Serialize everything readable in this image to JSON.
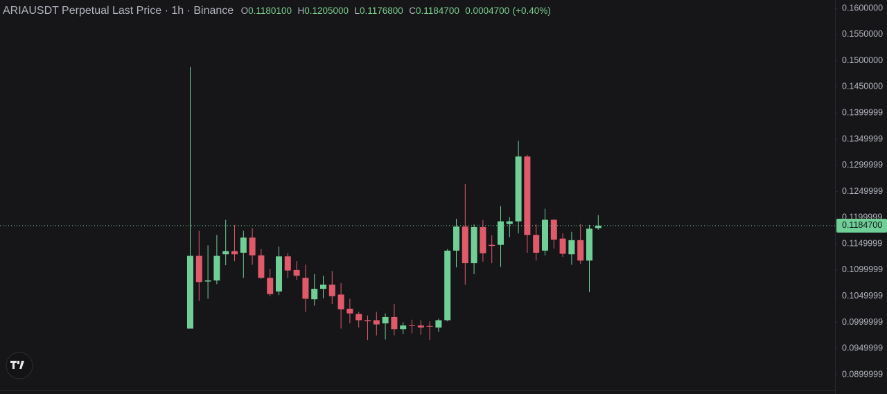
{
  "chart_data": {
    "type": "candlestick",
    "header": {
      "symbol": "ARIAUSDT Perpetual Last Price · 1h · Binance",
      "o_label": "O",
      "o": "0.1180100",
      "h_label": "H",
      "h": "0.1205000",
      "l_label": "L",
      "l": "0.1176800",
      "c_label": "C",
      "c": "0.1184700",
      "change": "0.0004700",
      "change_pct": "(+0.40%)"
    },
    "open": [
      0.0988,
      0.1127,
      0.1078,
      0.108,
      0.113,
      0.1136,
      0.1133,
      0.1162,
      0.1128,
      0.1085,
      0.1059,
      0.1126,
      0.11,
      0.1085,
      0.1044,
      0.1064,
      0.1072,
      0.1053,
      0.1026,
      0.1016,
      0.1004,
      0.1004,
      0.0998,
      0.101,
      0.0987,
      0.0994,
      0.0994,
      0.0993,
      0.099,
      0.1004,
      0.1137,
      0.1183,
      0.1113,
      0.1182,
      0.1148,
      0.1148,
      0.1188,
      0.1193,
      0.1317,
      0.1167,
      0.1137,
      0.1196,
      0.116,
      0.113,
      0.1157,
      0.1118,
      0.11801
    ],
    "high": [
      0.1488,
      0.1175,
      0.1147,
      0.1167,
      0.1196,
      0.1186,
      0.1175,
      0.118,
      0.114,
      0.1102,
      0.1145,
      0.1132,
      0.1117,
      0.111,
      0.1092,
      0.1089,
      0.1098,
      0.1075,
      0.1045,
      0.102,
      0.1013,
      0.102,
      0.1017,
      0.1035,
      0.1,
      0.1005,
      0.1004,
      0.1002,
      0.1007,
      0.114,
      0.1198,
      0.1264,
      0.1187,
      0.1195,
      0.1166,
      0.1222,
      0.1201,
      0.1347,
      0.132,
      0.1187,
      0.1217,
      0.1197,
      0.117,
      0.1173,
      0.1188,
      0.1186,
      0.1205
    ],
    "low": [
      0.0988,
      0.1041,
      0.1045,
      0.1073,
      0.1109,
      0.1117,
      0.1085,
      0.111,
      0.1083,
      0.105,
      0.1052,
      0.1085,
      0.1081,
      0.102,
      0.1032,
      0.1046,
      0.1035,
      0.0988,
      0.0998,
      0.099,
      0.0966,
      0.0975,
      0.0967,
      0.0975,
      0.0978,
      0.0979,
      0.0976,
      0.0966,
      0.0982,
      0.1002,
      0.1105,
      0.1072,
      0.1092,
      0.1116,
      0.1113,
      0.1106,
      0.1163,
      0.117,
      0.1133,
      0.1118,
      0.1128,
      0.1141,
      0.1125,
      0.111,
      0.1112,
      0.1058,
      0.11768
    ],
    "close": [
      0.1127,
      0.1077,
      0.108,
      0.1127,
      0.1136,
      0.113,
      0.1162,
      0.1128,
      0.1085,
      0.1054,
      0.1126,
      0.1099,
      0.1089,
      0.1045,
      0.1064,
      0.1072,
      0.105,
      0.1025,
      0.1017,
      0.1004,
      0.1002,
      0.0996,
      0.101,
      0.0987,
      0.0994,
      0.0993,
      0.099,
      0.0992,
      0.1004,
      0.1137,
      0.1183,
      0.1113,
      0.1182,
      0.1132,
      0.1146,
      0.1193,
      0.1193,
      0.1317,
      0.1167,
      0.1133,
      0.1196,
      0.1158,
      0.1131,
      0.1157,
      0.1118,
      0.1179,
      0.11847
    ],
    "up_color": "#6fcf97",
    "down_color": "#e15a6b",
    "ylim": [
      0.0863,
      0.1616
    ],
    "yticks": [
      {
        "value": 0.16,
        "label": "0.1600000"
      },
      {
        "value": 0.155,
        "label": "0.1550000"
      },
      {
        "value": 0.15,
        "label": "0.1500000"
      },
      {
        "value": 0.145,
        "label": "0.1450000"
      },
      {
        "value": 0.14,
        "label": "0.1399999"
      },
      {
        "value": 0.135,
        "label": "0.1349999"
      },
      {
        "value": 0.13,
        "label": "0.1299999"
      },
      {
        "value": 0.125,
        "label": "0.1249999"
      },
      {
        "value": 0.12,
        "label": "0.1199999"
      },
      {
        "value": 0.115,
        "label": "0.1149999"
      },
      {
        "value": 0.11,
        "label": "0.1099999"
      },
      {
        "value": 0.105,
        "label": "0.1049999"
      },
      {
        "value": 0.1,
        "label": "0.0999999"
      },
      {
        "value": 0.095,
        "label": "0.0949999"
      },
      {
        "value": 0.09,
        "label": "0.0899999"
      }
    ],
    "last_price": {
      "value": 0.11847,
      "label": "0.1184700"
    }
  }
}
